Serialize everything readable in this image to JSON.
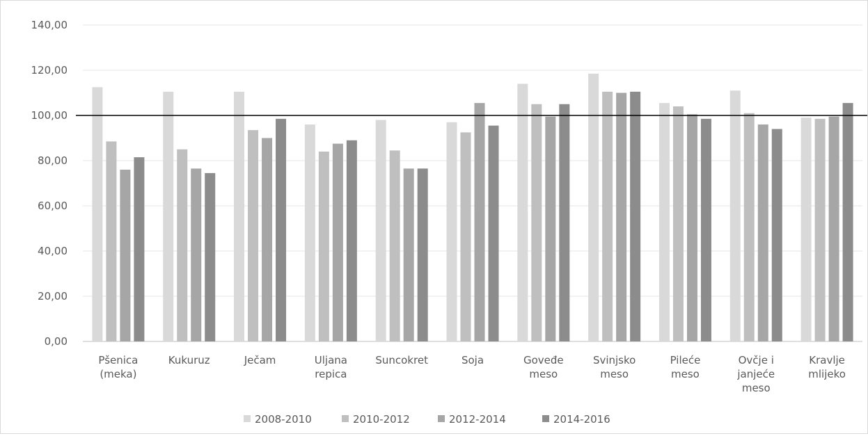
{
  "chart_data": {
    "type": "bar",
    "title": "",
    "xlabel": "",
    "ylabel": "",
    "ylim": [
      0,
      140
    ],
    "yticks": [
      "0,00",
      "20,00",
      "40,00",
      "60,00",
      "80,00",
      "100,00",
      "120,00",
      "140,00"
    ],
    "grid": true,
    "reference_line": 100,
    "legend_position": "bottom",
    "categories": [
      [
        "Pšenica",
        "(meka)"
      ],
      [
        "Kukuruz"
      ],
      [
        "Ječam"
      ],
      [
        "Uljana",
        "repica"
      ],
      [
        "Suncokret"
      ],
      [
        "Soja"
      ],
      [
        "Goveđe",
        "meso"
      ],
      [
        "Svinjsko",
        "meso"
      ],
      [
        "Pileće",
        "meso"
      ],
      [
        "Ovčje i",
        "janjeće",
        "meso"
      ],
      [
        "Kravlje",
        "mlijeko"
      ]
    ],
    "series": [
      {
        "name": "2008-2010",
        "color": "#d9d9d9",
        "values": [
          112.5,
          110.5,
          110.5,
          96,
          98,
          97,
          114,
          118.5,
          105.5,
          111,
          99
        ]
      },
      {
        "name": "2010-2012",
        "color": "#bfbfbf",
        "values": [
          88.5,
          85,
          93.5,
          84,
          84.5,
          92.5,
          105,
          110.5,
          104,
          101,
          98.5
        ]
      },
      {
        "name": "2012-2014",
        "color": "#a6a6a6",
        "values": [
          76,
          76.5,
          90,
          87.5,
          76.5,
          105.5,
          99.5,
          110,
          100.5,
          96,
          99.5
        ]
      },
      {
        "name": "2014-2016",
        "color": "#8c8c8c",
        "values": [
          81.5,
          74.5,
          98.5,
          89,
          76.5,
          95.5,
          105,
          110.5,
          98.5,
          94,
          105.5
        ]
      }
    ]
  }
}
